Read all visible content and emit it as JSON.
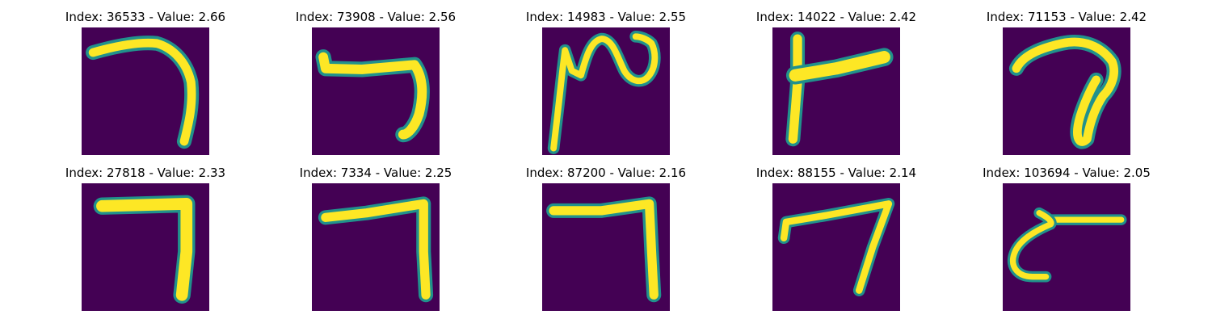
{
  "figure": {
    "panels": [
      {
        "title": "Index: 36533 - Value: 2.66",
        "shape": "digit-7-hook-icon"
      },
      {
        "title": "Index: 73908 - Value: 2.56",
        "shape": "digit-7-hook-icon"
      },
      {
        "title": "Index: 14983 - Value: 2.55",
        "shape": "squiggle-stroke-icon"
      },
      {
        "title": "Index: 14022 - Value: 2.42",
        "shape": "t-shape-stroke-icon"
      },
      {
        "title": "Index: 71153 - Value: 2.42",
        "shape": "digit-7-loop-icon"
      },
      {
        "title": "Index: 27818 - Value: 2.33",
        "shape": "digit-7-icon"
      },
      {
        "title": "Index: 7334 - Value: 2.25",
        "shape": "digit-7-icon"
      },
      {
        "title": "Index: 87200 - Value: 2.16",
        "shape": "digit-7-icon"
      },
      {
        "title": "Index: 88155 - Value: 2.14",
        "shape": "digit-7-icon"
      },
      {
        "title": "Index: 103694 - Value: 2.05",
        "shape": "c-shape-stroke-icon"
      }
    ],
    "colors": {
      "background": "#440154",
      "edge": "#21918c",
      "stroke": "#fde725"
    }
  }
}
